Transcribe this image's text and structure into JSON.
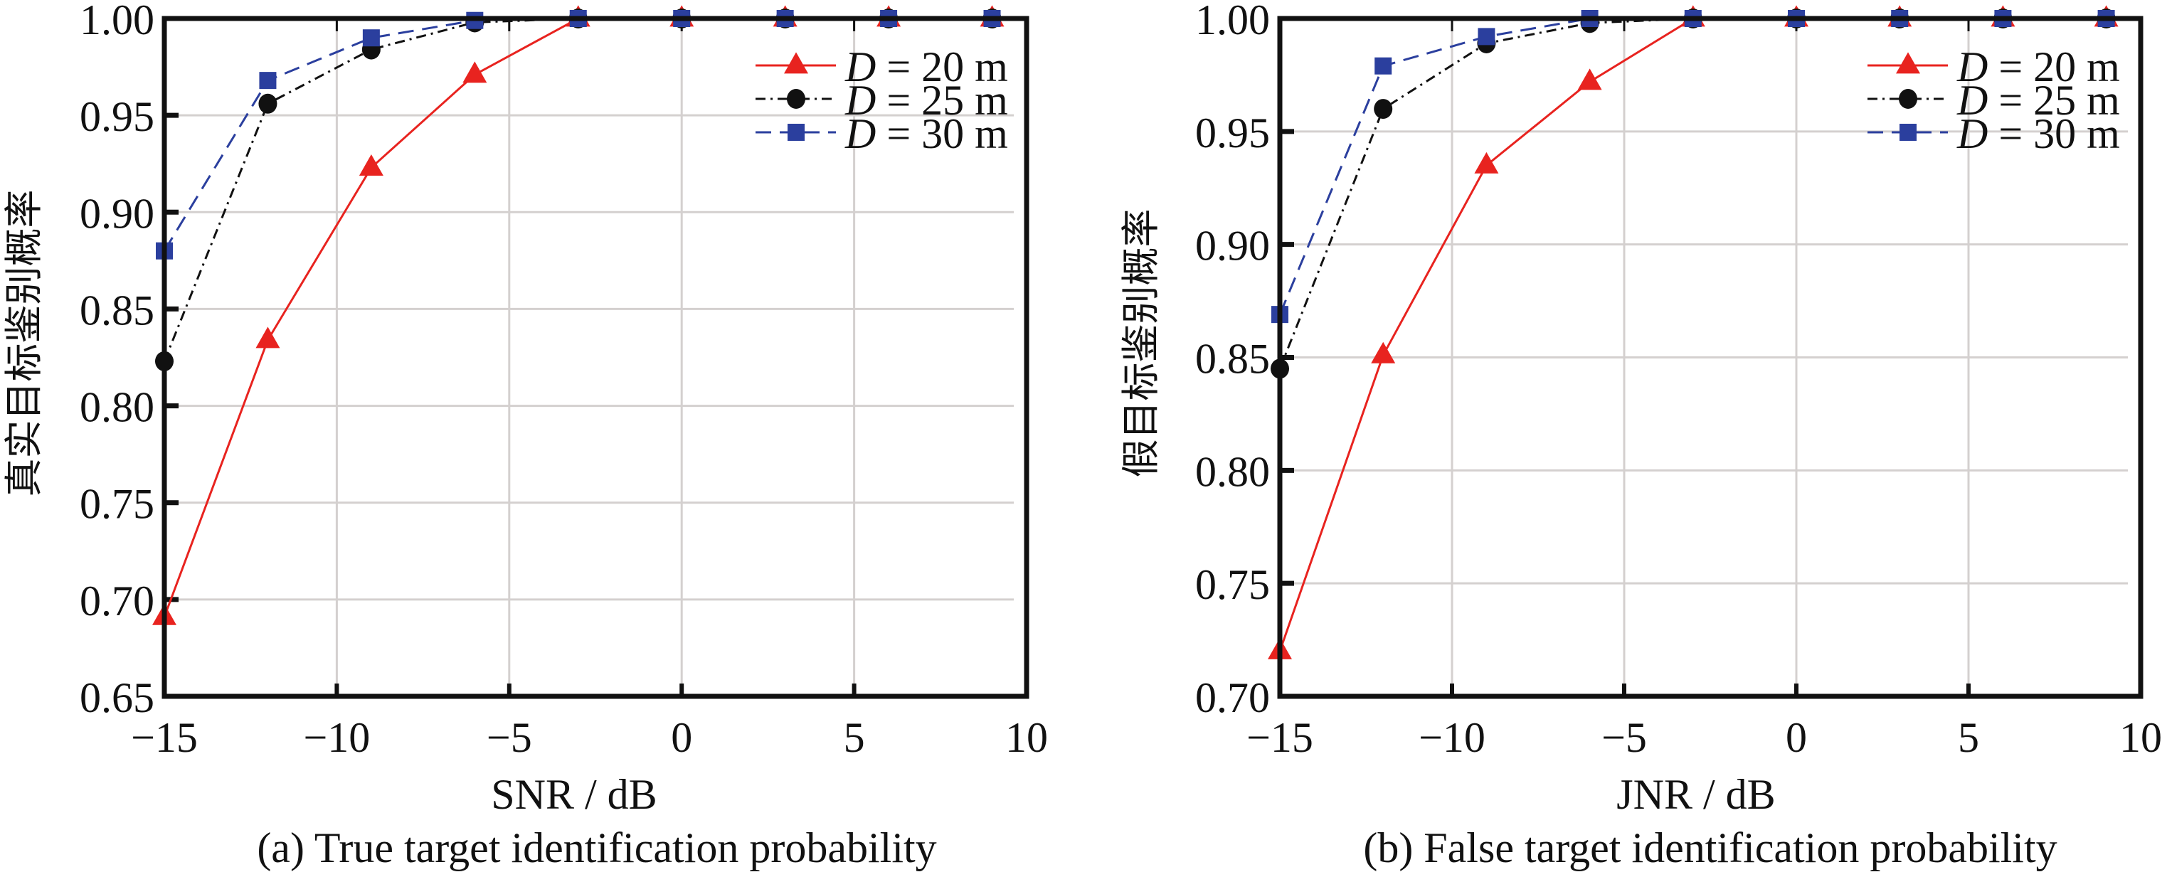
{
  "chart_data": [
    {
      "type": "line",
      "caption": "(a) True target identification probability",
      "xlabel": "SNR / dB",
      "ylabel": "真实目标鉴别概率",
      "xlim": [
        -15,
        10
      ],
      "ylim": [
        0.65,
        1.0
      ],
      "xticks": [
        -15,
        -10,
        -5,
        0,
        5,
        10
      ],
      "xtick_labels": [
        "−15",
        "−10",
        "−5",
        "0",
        "5",
        "10"
      ],
      "yticks": [
        0.65,
        0.7,
        0.75,
        0.8,
        0.85,
        0.9,
        0.95,
        1.0
      ],
      "ytick_labels": [
        "0.65",
        "0.70",
        "0.75",
        "0.80",
        "0.85",
        "0.90",
        "0.95",
        "1.00"
      ],
      "grid": true,
      "legend_position": "top-right",
      "x": [
        -15,
        -12,
        -9,
        -6,
        -3,
        0,
        3,
        6,
        9
      ],
      "series": [
        {
          "name": "D = 20 m",
          "name_var": "D",
          "name_rest": " = 20 m",
          "color": "#e8231f",
          "marker": "triangle",
          "line_style": "solid",
          "values": [
            0.691,
            0.834,
            0.923,
            0.971,
            1.0,
            1.0,
            1.0,
            1.0,
            1.0
          ]
        },
        {
          "name": "D = 25 m",
          "name_var": "D",
          "name_rest": " = 25 m",
          "color": "#111111",
          "marker": "circle",
          "line_style": "dashdot",
          "values": [
            0.823,
            0.956,
            0.984,
            0.998,
            1.0,
            1.0,
            1.0,
            1.0,
            1.0
          ]
        },
        {
          "name": "D = 30 m",
          "name_var": "D",
          "name_rest": " = 30 m",
          "color": "#2b3f9e",
          "marker": "square",
          "line_style": "dashed",
          "values": [
            0.88,
            0.968,
            0.99,
            0.999,
            1.0,
            1.0,
            1.0,
            1.0,
            1.0
          ]
        }
      ]
    },
    {
      "type": "line",
      "caption": "(b) False target identification probability",
      "xlabel": "JNR / dB",
      "ylabel": "假目标鉴别概率",
      "xlim": [
        -15,
        10
      ],
      "ylim": [
        0.7,
        1.0
      ],
      "xticks": [
        -15,
        -10,
        -5,
        0,
        5,
        10
      ],
      "xtick_labels": [
        "−15",
        "−10",
        "−5",
        "0",
        "5",
        "10"
      ],
      "yticks": [
        0.7,
        0.75,
        0.8,
        0.85,
        0.9,
        0.95,
        1.0
      ],
      "ytick_labels": [
        "0.70",
        "0.75",
        "0.80",
        "0.85",
        "0.90",
        "0.95",
        "1.00"
      ],
      "grid": true,
      "legend_position": "top-right",
      "x": [
        -15,
        -12,
        -9,
        -6,
        -3,
        0,
        3,
        6,
        9
      ],
      "series": [
        {
          "name": "D = 20 m",
          "name_var": "D",
          "name_rest": " = 20 m",
          "color": "#e8231f",
          "marker": "triangle",
          "line_style": "solid",
          "values": [
            0.72,
            0.851,
            0.935,
            0.972,
            1.0,
            1.0,
            1.0,
            1.0,
            1.0
          ]
        },
        {
          "name": "D = 25 m",
          "name_var": "D",
          "name_rest": " = 25 m",
          "color": "#111111",
          "marker": "circle",
          "line_style": "dashdot",
          "values": [
            0.845,
            0.96,
            0.989,
            0.998,
            1.0,
            1.0,
            1.0,
            1.0,
            1.0
          ]
        },
        {
          "name": "D = 30 m",
          "name_var": "D",
          "name_rest": " = 30 m",
          "color": "#2b3f9e",
          "marker": "square",
          "line_style": "dashed",
          "values": [
            0.869,
            0.979,
            0.992,
            1.0,
            1.0,
            1.0,
            1.0,
            1.0,
            1.0
          ]
        }
      ]
    }
  ]
}
